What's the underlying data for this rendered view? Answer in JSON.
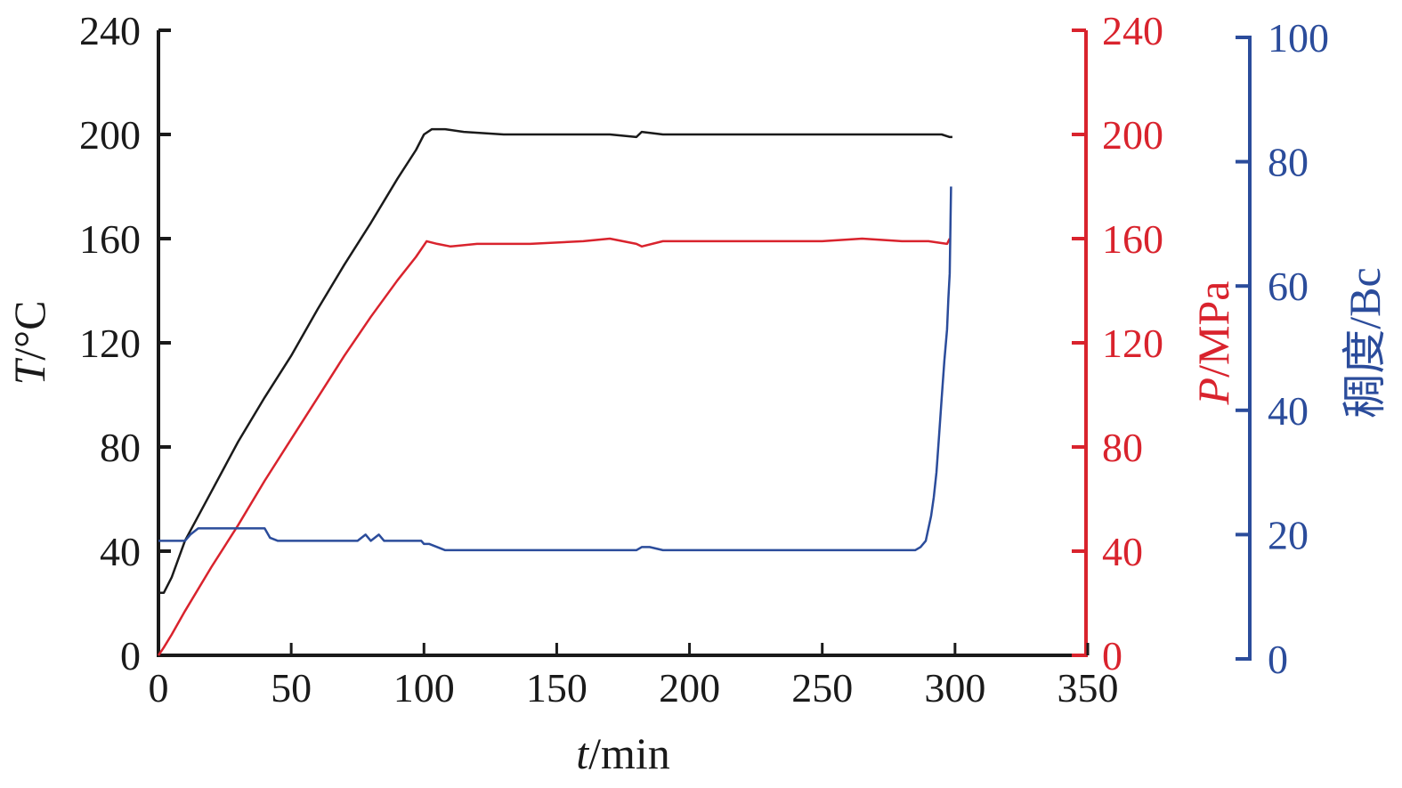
{
  "chart_data": {
    "type": "line",
    "x_axis": {
      "label_var": "t",
      "label_unit": "/min",
      "range": [
        0,
        350
      ],
      "ticks": [
        0,
        50,
        100,
        150,
        200,
        250,
        300,
        350
      ],
      "tick_labels": [
        "0",
        "50",
        "100",
        "150",
        "200",
        "250",
        "300",
        "350"
      ]
    },
    "y_axes": [
      {
        "id": "T",
        "side": "left",
        "label_var": "T",
        "label_unit": "/°C",
        "range": [
          0,
          240
        ],
        "ticks": [
          0,
          40,
          80,
          120,
          160,
          200,
          240
        ],
        "tick_labels": [
          "0",
          "40",
          "80",
          "120",
          "160",
          "200",
          "240"
        ],
        "color": "#1a1a1a"
      },
      {
        "id": "P",
        "side": "right",
        "label_var": "P",
        "label_unit": "/MPa",
        "range": [
          0,
          240
        ],
        "ticks": [
          0,
          40,
          80,
          120,
          160,
          200,
          240
        ],
        "tick_labels": [
          "0",
          "40",
          "80",
          "120",
          "160",
          "200",
          "240"
        ],
        "color": "#d9232d"
      },
      {
        "id": "C",
        "side": "right",
        "label_var": "稠度",
        "label_unit": "/Bc",
        "range": [
          0,
          100
        ],
        "ticks": [
          0,
          20,
          40,
          60,
          80,
          100
        ],
        "tick_labels": [
          "0",
          "20",
          "40",
          "60",
          "80",
          "100"
        ],
        "color": "#2b4c9b"
      }
    ],
    "series": [
      {
        "axis": "T",
        "color": "#1a1a1a",
        "x": [
          0,
          2,
          5,
          10,
          20,
          30,
          40,
          50,
          60,
          70,
          80,
          90,
          97,
          100,
          103,
          108,
          115,
          130,
          150,
          170,
          180,
          182,
          190,
          200,
          220,
          250,
          280,
          295,
          298,
          299
        ],
        "y": [
          24,
          24,
          30,
          44,
          63,
          82,
          99,
          115,
          133,
          150,
          166,
          183,
          194,
          200,
          202,
          202,
          201,
          200,
          200,
          200,
          199,
          201,
          200,
          200,
          200,
          200,
          200,
          200,
          199,
          199
        ]
      },
      {
        "axis": "P",
        "color": "#d9232d",
        "x": [
          0,
          2,
          5,
          10,
          20,
          30,
          40,
          50,
          60,
          70,
          80,
          90,
          97,
          101,
          105,
          110,
          120,
          140,
          160,
          170,
          180,
          182,
          190,
          200,
          220,
          250,
          265,
          280,
          290,
          297,
          298
        ],
        "y": [
          0,
          3,
          8,
          17,
          34,
          50,
          67,
          83,
          99,
          115,
          130,
          144,
          153,
          159,
          158,
          157,
          158,
          158,
          159,
          160,
          158,
          157,
          159,
          159,
          159,
          159,
          160,
          159,
          159,
          158,
          160
        ]
      },
      {
        "axis": "C",
        "color": "#2b4c9b",
        "x": [
          0,
          5,
          10,
          12,
          15,
          20,
          25,
          30,
          35,
          40,
          42,
          45,
          50,
          55,
          60,
          65,
          70,
          75,
          78,
          80,
          83,
          85,
          88,
          90,
          95,
          99,
          100,
          102,
          108,
          120,
          150,
          180,
          182,
          185,
          190,
          200,
          230,
          260,
          285,
          287,
          289,
          290,
          291,
          292,
          293,
          294,
          295,
          296,
          297,
          297.5,
          298,
          298.5
        ],
        "y": [
          19,
          19,
          19,
          20,
          21,
          21,
          21,
          21,
          21,
          21,
          19.5,
          19,
          19,
          19,
          19,
          19,
          19,
          19,
          20,
          19,
          20,
          19,
          19,
          19,
          19,
          19,
          18.5,
          18.5,
          17.5,
          17.5,
          17.5,
          17.5,
          18,
          18,
          17.5,
          17.5,
          17.5,
          17.5,
          17.5,
          18,
          19,
          21,
          23,
          26,
          30,
          36,
          42,
          48,
          53,
          58,
          62,
          76
        ]
      }
    ]
  }
}
